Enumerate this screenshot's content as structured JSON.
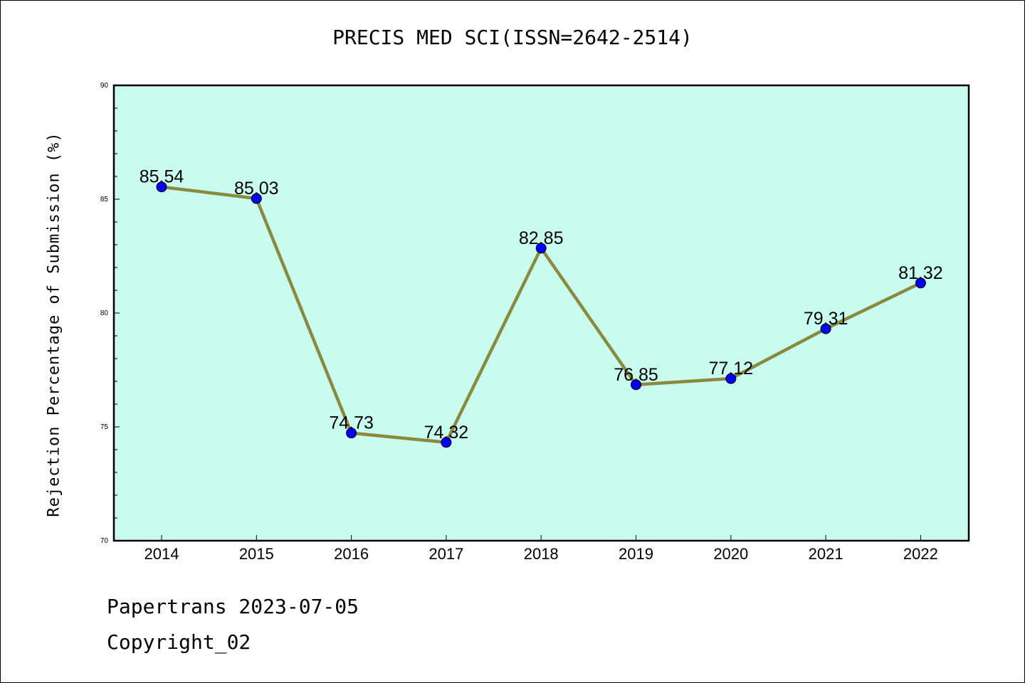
{
  "chart_data": {
    "type": "line",
    "title": "PRECIS MED SCI(ISSN=2642-2514)",
    "ylabel": "Rejection Percentage of Submission (%)",
    "xlabel": "",
    "categories": [
      "2014",
      "2015",
      "2016",
      "2017",
      "2018",
      "2019",
      "2020",
      "2021",
      "2022"
    ],
    "values": [
      85.54,
      85.03,
      74.73,
      74.32,
      82.85,
      76.85,
      77.12,
      79.31,
      81.32
    ],
    "data_labels": [
      "85.54",
      "85.03",
      "74.73",
      "74.32",
      "82.85",
      "76.85",
      "77.12",
      "79.31",
      "81.32"
    ],
    "ylim": [
      70,
      90
    ],
    "yticks": [
      70,
      75,
      80,
      85,
      90
    ],
    "grid": false,
    "colors": {
      "plot_background": "#c8fcee",
      "line": "#8b8a3c",
      "marker": "#0000ff"
    }
  },
  "footer": {
    "line1": "Papertrans 2023-07-05",
    "line2": "Copyright_02"
  }
}
